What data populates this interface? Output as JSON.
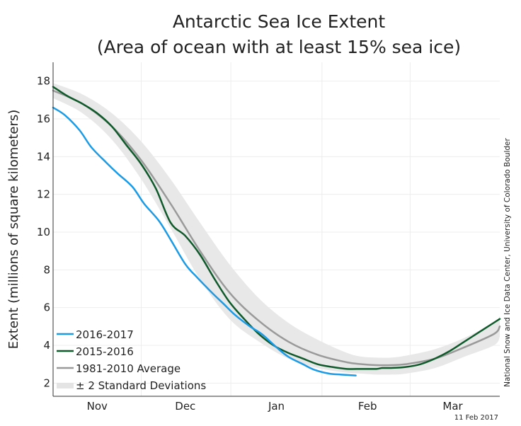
{
  "chart_data": {
    "type": "line",
    "title_line1": "Antarctic Sea Ice Extent",
    "title_line2": "(Area of ocean with at least 15% sea ice)",
    "ylabel": "Extent (millions of square kilometers)",
    "xlabel": "",
    "ylim": [
      1.3,
      19.0
    ],
    "yticks": [
      2,
      4,
      6,
      8,
      10,
      12,
      14,
      16,
      18
    ],
    "xlim": [
      0,
      152
    ],
    "month_labels": [
      {
        "label": "Nov",
        "x": 15
      },
      {
        "label": "Dec",
        "x": 45
      },
      {
        "label": "Jan",
        "x": 76
      },
      {
        "label": "Feb",
        "x": 107
      },
      {
        "label": "Mar",
        "x": 136
      }
    ],
    "x_unit": "day of season (0 = Oct 31)",
    "grid": true,
    "legend_position": "bottom-left",
    "series": [
      {
        "name": "2016-2017",
        "color": "#1b9be6",
        "x": [
          0,
          4,
          9,
          13,
          18,
          22,
          27,
          31,
          36,
          40,
          45,
          49,
          54,
          58,
          62,
          67,
          71,
          76,
          80,
          85,
          89,
          94,
          98,
          103
        ],
        "values": [
          16.6,
          16.2,
          15.4,
          14.5,
          13.7,
          13.1,
          12.4,
          11.5,
          10.6,
          9.6,
          8.3,
          7.6,
          6.8,
          6.2,
          5.6,
          5.0,
          4.6,
          3.9,
          3.4,
          3.0,
          2.7,
          2.5,
          2.45,
          2.4
        ]
      },
      {
        "name": "2015-2016",
        "color": "#0f5a2a",
        "x": [
          0,
          5,
          10,
          15,
          20,
          25,
          30,
          35,
          40,
          45,
          50,
          55,
          60,
          65,
          70,
          75,
          80,
          85,
          90,
          95,
          100,
          105,
          110,
          112,
          115,
          120,
          125,
          130,
          135,
          140,
          145,
          150,
          152
        ],
        "values": [
          17.7,
          17.2,
          16.8,
          16.3,
          15.6,
          14.6,
          13.6,
          12.3,
          10.5,
          9.8,
          8.8,
          7.5,
          6.3,
          5.4,
          4.6,
          4.0,
          3.6,
          3.3,
          3.0,
          2.85,
          2.75,
          2.75,
          2.75,
          2.8,
          2.8,
          2.85,
          3.0,
          3.3,
          3.7,
          4.2,
          4.7,
          5.2,
          5.4
        ]
      },
      {
        "name": "1981-2010 Average",
        "color": "#9a9a9a",
        "x": [
          0,
          10,
          20,
          30,
          40,
          50,
          60,
          70,
          80,
          90,
          100,
          105,
          110,
          115,
          120,
          130,
          140,
          150,
          152
        ],
        "values": [
          17.5,
          16.8,
          15.6,
          13.8,
          11.5,
          9.0,
          6.8,
          5.3,
          4.2,
          3.5,
          3.1,
          3.0,
          2.95,
          2.95,
          3.0,
          3.3,
          3.9,
          4.6,
          5.0
        ]
      }
    ],
    "band": {
      "name": "± 2 Standard Deviations",
      "color": "#e8e8e8",
      "x": [
        0,
        10,
        20,
        30,
        40,
        50,
        60,
        70,
        80,
        90,
        100,
        105,
        110,
        115,
        120,
        130,
        140,
        150,
        152
      ],
      "upper": [
        17.9,
        17.3,
        16.3,
        14.8,
        12.8,
        10.5,
        8.3,
        6.5,
        5.2,
        4.3,
        3.6,
        3.4,
        3.35,
        3.35,
        3.45,
        3.8,
        4.4,
        5.2,
        5.55
      ],
      "lower": [
        17.1,
        16.3,
        14.9,
        12.8,
        10.2,
        7.5,
        5.4,
        4.2,
        3.3,
        2.8,
        2.55,
        2.5,
        2.45,
        2.45,
        2.5,
        2.8,
        3.4,
        4.0,
        4.45
      ]
    }
  },
  "credit": "National Snow and Ice Data Center, University of Colorado Boulder",
  "date_stamp": "11 Feb 2017"
}
